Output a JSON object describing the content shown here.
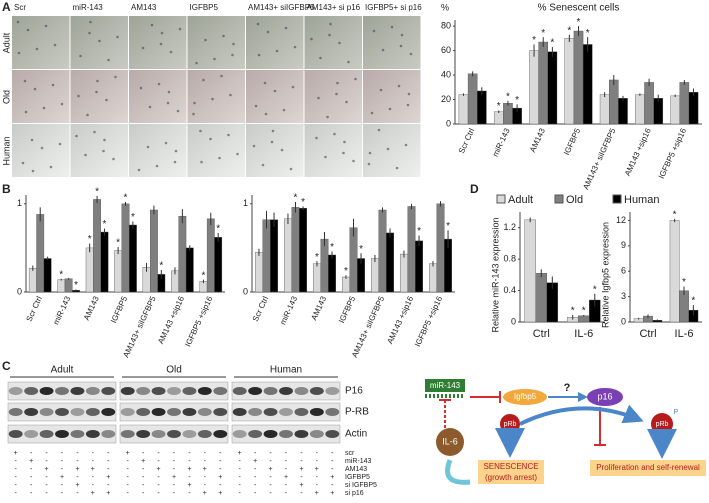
{
  "panel_labels": [
    "A",
    "B",
    "C",
    "D"
  ],
  "images": {
    "columns": [
      "Scr",
      "miR-143",
      "AM143",
      "IGFBP5",
      "AM143+ siIGFBP5",
      "AM143+ si p16",
      "IGFBP5+ si p16"
    ],
    "rows": [
      "Adult",
      "Old",
      "Human"
    ]
  },
  "chart_data": [
    {
      "type": "bar",
      "title": "% Senescent cells",
      "y_label": "%",
      "marker": "*",
      "categories": [
        "Scr Ctrl",
        "miR-143",
        "AM143",
        "IGFBP5",
        "AM143+ siIGFBP5",
        "AM143 +sip16",
        "IGFBP5 +sip16"
      ],
      "ylim": [
        0,
        85
      ],
      "yticks": [
        0,
        20,
        40,
        60,
        80
      ],
      "series": [
        {
          "name": "Adult",
          "color": "#d9d9d9",
          "values": [
            24,
            10,
            60,
            70,
            24,
            24,
            23
          ],
          "errors": [
            1,
            1,
            5,
            3,
            2,
            1,
            1
          ],
          "sig": [
            false,
            true,
            true,
            true,
            false,
            false,
            false
          ]
        },
        {
          "name": "Old",
          "color": "#7f7f7f",
          "values": [
            41,
            17,
            67,
            76,
            36,
            34,
            34
          ],
          "errors": [
            2,
            2,
            4,
            4,
            4,
            3,
            2
          ],
          "sig": [
            false,
            true,
            true,
            true,
            false,
            false,
            false
          ]
        },
        {
          "name": "Human",
          "color": "#000000",
          "values": [
            27,
            13,
            59,
            65,
            21,
            21,
            26
          ],
          "errors": [
            3,
            3,
            4,
            6,
            2,
            3,
            3
          ],
          "sig": [
            false,
            true,
            true,
            true,
            false,
            false,
            false
          ]
        }
      ]
    },
    {
      "type": "bar",
      "marker": "*",
      "categories": [
        "Scr Ctrl",
        "miR-143",
        "AM143",
        "IGFBP5",
        "AM143+ siIGFBP5",
        "AM143 +sip16",
        "IGFBP5 +sip16"
      ],
      "ylim": [
        0,
        1.1
      ],
      "yticks": [
        0,
        1
      ],
      "series": [
        {
          "name": "Adult",
          "color": "#d9d9d9",
          "values": [
            0.27,
            0.14,
            0.5,
            0.47,
            0.28,
            0.24,
            0.12
          ],
          "errors": [
            0.03,
            0.01,
            0.05,
            0.04,
            0.05,
            0.04,
            0.02
          ],
          "sig": [
            false,
            true,
            true,
            true,
            false,
            false,
            true
          ]
        },
        {
          "name": "Old",
          "color": "#7f7f7f",
          "values": [
            0.88,
            0.15,
            1.05,
            1.0,
            0.93,
            0.86,
            0.83
          ],
          "errors": [
            0.08,
            0.01,
            0.04,
            0.02,
            0.05,
            0.08,
            0.07
          ],
          "sig": [
            false,
            false,
            true,
            true,
            false,
            false,
            false
          ]
        },
        {
          "name": "Human",
          "color": "#000000",
          "values": [
            0.38,
            0.02,
            0.68,
            0.76,
            0.2,
            0.5,
            0.62
          ],
          "errors": [
            0.02,
            0.01,
            0.04,
            0.04,
            0.05,
            0.03,
            0.05
          ],
          "sig": [
            false,
            true,
            true,
            true,
            true,
            false,
            true
          ]
        }
      ]
    },
    {
      "type": "bar",
      "marker": "*",
      "categories": [
        "Scr Ctrl",
        "miR-143",
        "AM143",
        "IGFBP5",
        "AM143+ siIGFBP5",
        "AM143 +sip16",
        "IGFBP5 +sip16"
      ],
      "ylim": [
        0,
        1.1
      ],
      "yticks": [
        0,
        1
      ],
      "series": [
        {
          "name": "Adult",
          "color": "#d9d9d9",
          "values": [
            0.45,
            0.83,
            0.32,
            0.17,
            0.38,
            0.43,
            0.32
          ],
          "errors": [
            0.04,
            0.06,
            0.03,
            0.02,
            0.04,
            0.04,
            0.03
          ],
          "sig": [
            false,
            false,
            true,
            true,
            false,
            false,
            false
          ]
        },
        {
          "name": "Old",
          "color": "#7f7f7f",
          "values": [
            0.82,
            0.96,
            0.6,
            0.73,
            0.93,
            0.97,
            1.0
          ],
          "errors": [
            0.1,
            0.06,
            0.08,
            0.1,
            0.03,
            0.03,
            0.03
          ],
          "sig": [
            false,
            true,
            false,
            false,
            false,
            false,
            false
          ]
        },
        {
          "name": "Human",
          "color": "#000000",
          "values": [
            0.82,
            0.95,
            0.42,
            0.38,
            0.67,
            0.58,
            0.6
          ],
          "errors": [
            0.08,
            0.02,
            0.04,
            0.06,
            0.05,
            0.06,
            0.1
          ],
          "sig": [
            false,
            true,
            true,
            true,
            false,
            true,
            true
          ]
        }
      ]
    },
    {
      "type": "bar",
      "y_label": "Relative miR-143 expression",
      "marker": "*",
      "legend": "top",
      "categories": [
        "Ctrl",
        "IL-6"
      ],
      "ylim": [
        0,
        1.4
      ],
      "yticks": [
        0,
        0.4,
        0.8,
        1.2
      ],
      "series": [
        {
          "name": "Adult",
          "color": "#d9d9d9",
          "values": [
            1.3,
            0.06
          ],
          "errors": [
            0.03,
            0.03
          ],
          "sig": [
            false,
            true
          ]
        },
        {
          "name": "Old",
          "color": "#7f7f7f",
          "values": [
            0.62,
            0.08
          ],
          "errors": [
            0.05,
            0.01
          ],
          "sig": [
            false,
            true
          ]
        },
        {
          "name": "Human",
          "color": "#000000",
          "values": [
            0.5,
            0.28
          ],
          "errors": [
            0.08,
            0.08
          ],
          "sig": [
            false,
            true
          ]
        }
      ]
    },
    {
      "type": "bar",
      "y_label": "Relative Igfbp5 expression",
      "marker": "*",
      "categories": [
        "Ctrl",
        "IL-6"
      ],
      "ylim": [
        0,
        13
      ],
      "yticks": [
        0,
        3,
        6,
        9,
        12
      ],
      "series": [
        {
          "name": "Adult",
          "color": "#d9d9d9",
          "values": [
            0.4,
            12
          ],
          "errors": [
            0.1,
            0.2
          ],
          "sig": [
            false,
            true
          ]
        },
        {
          "name": "Old",
          "color": "#7f7f7f",
          "values": [
            0.7,
            3.7
          ],
          "errors": [
            0.2,
            0.5
          ],
          "sig": [
            false,
            true
          ]
        },
        {
          "name": "Human",
          "color": "#000000",
          "values": [
            0.2,
            1.4
          ],
          "errors": [
            0.1,
            0.6
          ],
          "sig": [
            false,
            true
          ]
        }
      ]
    }
  ],
  "blot": {
    "groups": [
      "Adult",
      "Old",
      "Human"
    ],
    "bands": [
      "P16",
      "P-RB",
      "Actin"
    ],
    "treatments": [
      {
        "name": "scr",
        "signs": [
          "+",
          "-",
          "-",
          "-",
          "-",
          "-",
          "-",
          "+",
          "-",
          "-",
          "-",
          "-",
          "-",
          "-",
          "+",
          "-",
          "-",
          "-",
          "-",
          "-",
          "-"
        ]
      },
      {
        "name": "miR-143",
        "signs": [
          "-",
          "+",
          "-",
          "-",
          "-",
          "-",
          "-",
          "-",
          "+",
          "-",
          "-",
          "-",
          "-",
          "-",
          "-",
          "+",
          "-",
          "-",
          "-",
          "-",
          "-"
        ]
      },
      {
        "name": "AM143",
        "signs": [
          "-",
          "-",
          "+",
          "-",
          "+",
          "+",
          "-",
          "-",
          "-",
          "+",
          "-",
          "+",
          "+",
          "-",
          "-",
          "-",
          "+",
          "-",
          "+",
          "+",
          "-"
        ]
      },
      {
        "name": "IGFBP5",
        "signs": [
          "-",
          "-",
          "-",
          "+",
          "-",
          "-",
          "+",
          "-",
          "-",
          "-",
          "+",
          "-",
          "-",
          "+",
          "-",
          "-",
          "-",
          "+",
          "-",
          "-",
          "+"
        ]
      },
      {
        "name": "si IGFBP5",
        "signs": [
          "-",
          "-",
          "-",
          "-",
          "+",
          "-",
          "-",
          "-",
          "-",
          "-",
          "-",
          "+",
          "-",
          "-",
          "-",
          "-",
          "-",
          "-",
          "+",
          "-",
          "-"
        ]
      },
      {
        "name": "si p16",
        "signs": [
          "-",
          "-",
          "-",
          "-",
          "-",
          "+",
          "+",
          "-",
          "-",
          "-",
          "-",
          "-",
          "+",
          "+",
          "-",
          "-",
          "-",
          "-",
          "-",
          "+",
          "+"
        ]
      }
    ]
  },
  "diagram": {
    "mir": "miR-143",
    "igfbp5": "Igfbp5",
    "question": "?",
    "p16": "p16",
    "prb": "pRb",
    "prb2": "pRb",
    "phospho": "P",
    "il6": "IL-6",
    "senescence": "SENESCENCE",
    "senescence_note": "(growth arrest)",
    "proliferation": "Proliferation and self-renewal"
  }
}
